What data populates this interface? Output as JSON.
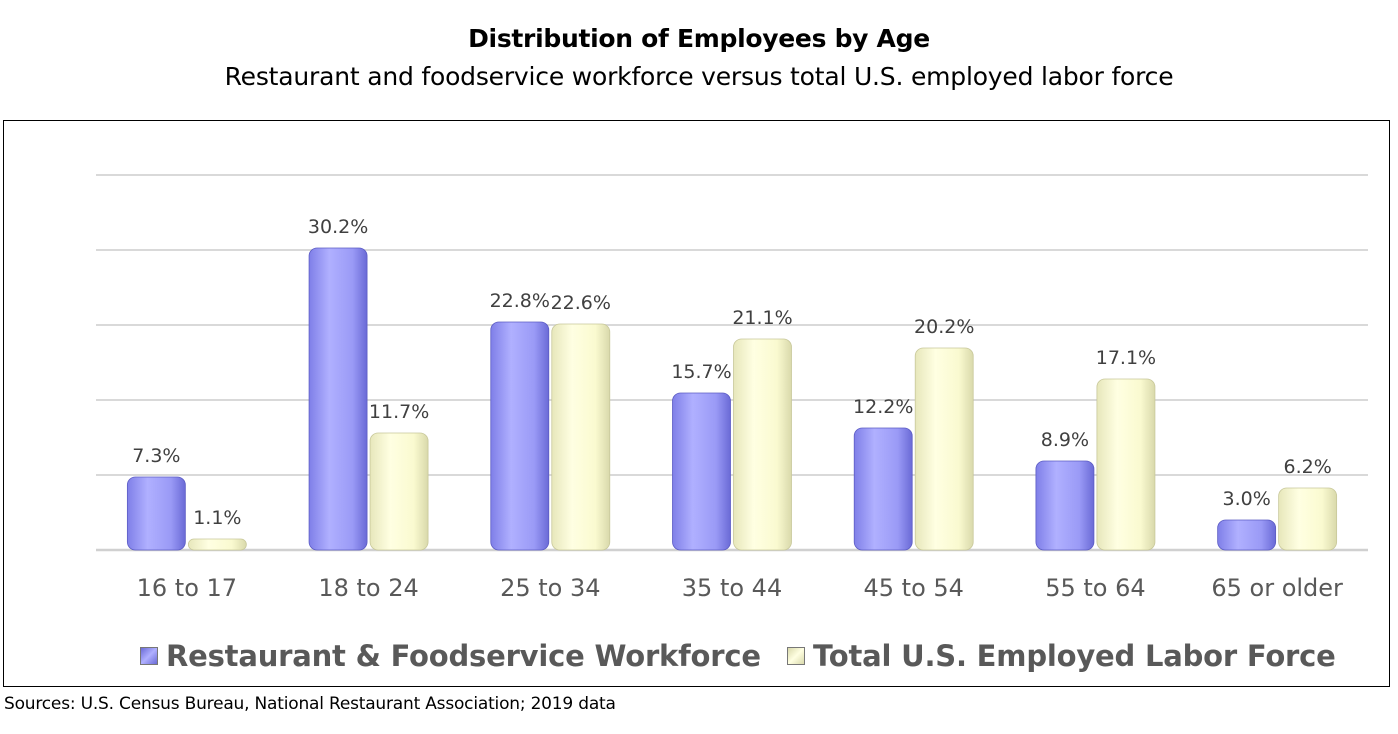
{
  "chart_data": {
    "type": "bar",
    "title": "Distribution of Employees by Age",
    "subtitle": "Restaurant and foodservice workforce versus total U.S. employed labor force",
    "categories": [
      "16 to 17",
      "18 to 24",
      "25 to 34",
      "35 to 44",
      "45 to 54",
      "55 to 64",
      "65 or older"
    ],
    "series": [
      {
        "name": "Restaurant & Foodservice Workforce",
        "values": [
          7.3,
          30.2,
          22.8,
          15.7,
          12.2,
          8.9,
          3.0
        ],
        "labels": [
          "7.3%",
          "30.2%",
          "22.8%",
          "15.7%",
          "12.2%",
          "8.9%",
          "3.0%"
        ],
        "color": "#9999f5"
      },
      {
        "name": "Total U.S. Employed Labor Force",
        "values": [
          1.1,
          11.7,
          22.6,
          21.1,
          20.2,
          17.1,
          6.2
        ],
        "labels": [
          "1.1%",
          "11.7%",
          "22.6%",
          "21.1%",
          "20.2%",
          "17.1%",
          "6.2%"
        ],
        "color": "#fbfbd3"
      }
    ],
    "ylim": [
      0,
      40
    ],
    "gridlines": [
      0,
      7.5,
      15,
      22.5,
      30,
      37.5
    ],
    "grid": true,
    "legend_position": "bottom"
  },
  "source": "Sources: U.S. Census Bureau, National Restaurant Association; 2019 data"
}
